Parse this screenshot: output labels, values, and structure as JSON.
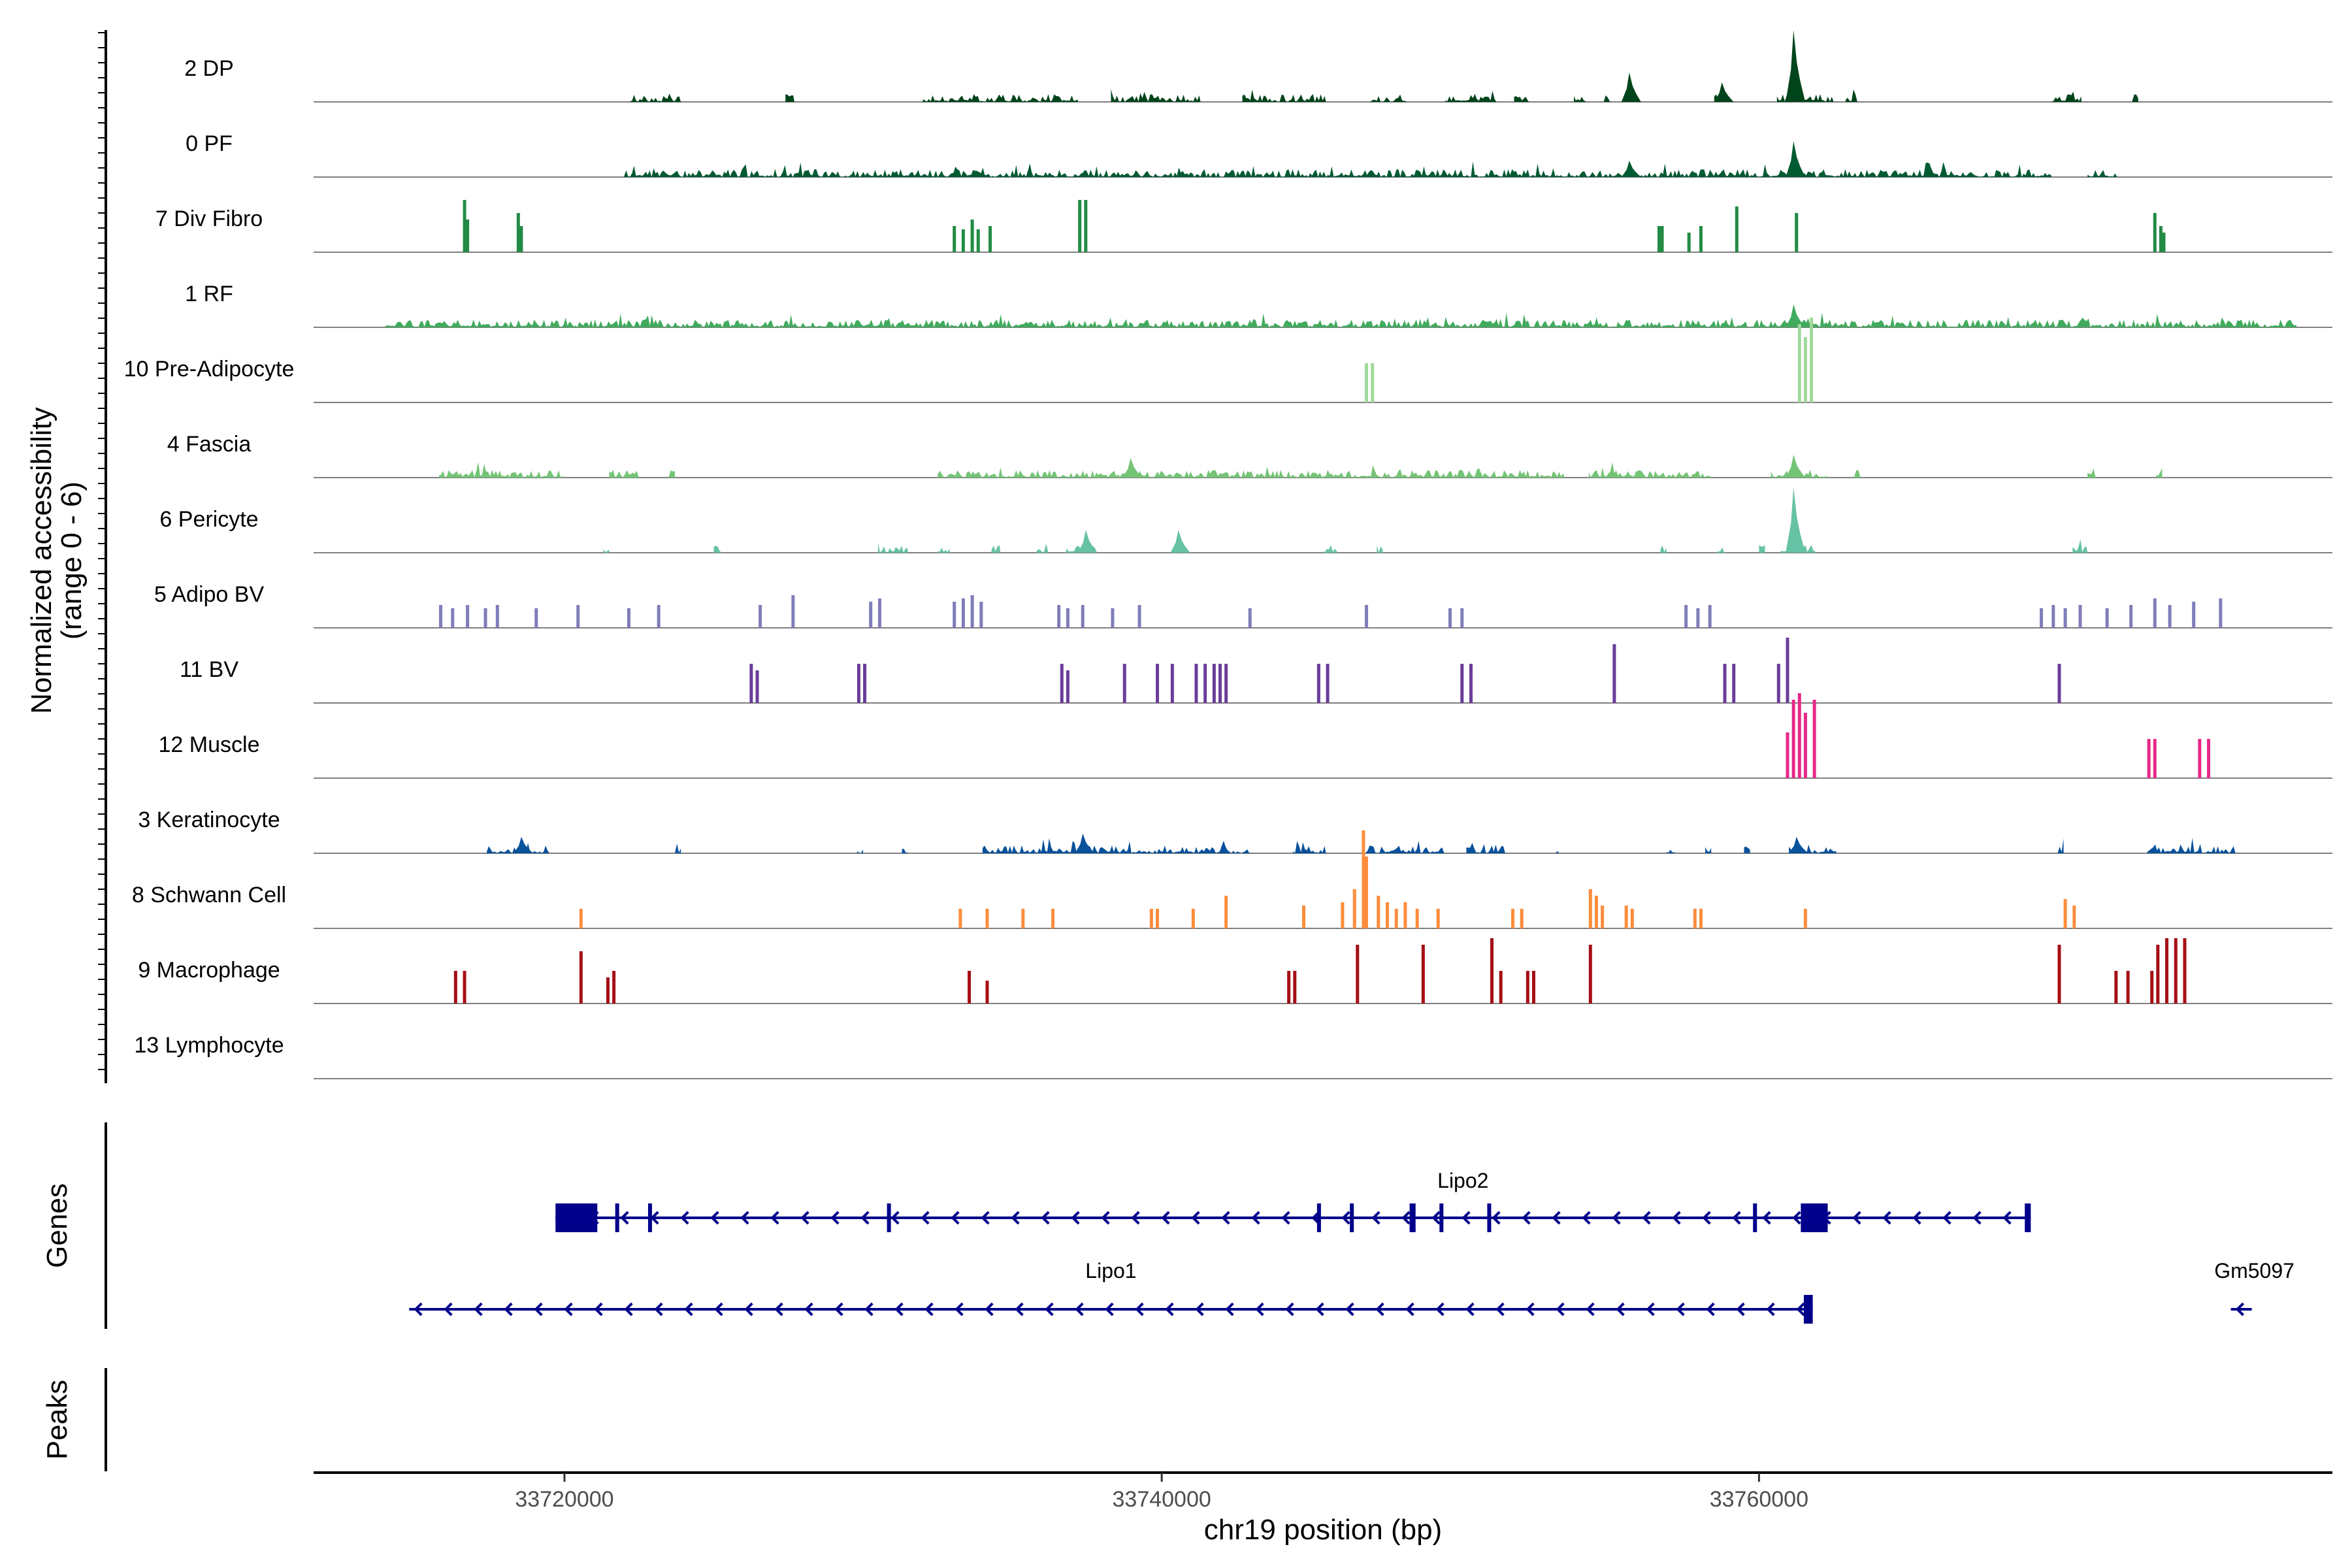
{
  "y_axis": {
    "label_line1": "Normalized accessibility",
    "label_line2": "(range 0 - 6)"
  },
  "panels": {
    "genes_label": "Genes",
    "peaks_label": "Peaks"
  },
  "x_axis": {
    "label": "chr19 position (bp)",
    "ticks": [
      "33720000",
      "33740000",
      "33760000"
    ]
  },
  "chart_data": {
    "type": "area",
    "region": {
      "chrom": "chr19",
      "start": 33711600,
      "end": 33779200
    },
    "ylim": [
      0,
      6
    ],
    "x_ticks": [
      33720000,
      33740000,
      33760000
    ],
    "tracks": [
      {
        "name": "2 DP",
        "color": "#00441b",
        "style": "dense",
        "regions": [
          [
            33722200,
            33723900
          ],
          [
            33727400,
            33727700
          ],
          [
            33732000,
            33737200
          ],
          [
            33738300,
            33741300
          ],
          [
            33742700,
            33745500
          ],
          [
            33747000,
            33748200
          ],
          [
            33749500,
            33751200
          ],
          [
            33751800,
            33752300
          ],
          [
            33753800,
            33754200
          ],
          [
            33754800,
            33755000
          ],
          [
            33758500,
            33758900
          ],
          [
            33760600,
            33762500
          ],
          [
            33762900,
            33763300
          ],
          [
            33769800,
            33770800
          ],
          [
            33772500,
            33772700
          ]
        ],
        "peaks": [
          [
            33761200,
            1.1
          ],
          [
            33755700,
            0.45
          ],
          [
            33758800,
            0.3
          ]
        ]
      },
      {
        "name": "0 PF",
        "color": "#005a32",
        "style": "dense",
        "regions": [
          [
            33722000,
            33769800
          ],
          [
            33771000,
            33772000
          ]
        ],
        "peaks": [
          [
            33761200,
            0.55
          ],
          [
            33755700,
            0.25
          ]
        ]
      },
      {
        "name": "7 Div Fibro",
        "color": "#238b45",
        "style": "bars",
        "bars": [
          [
            33716600,
            0.8
          ],
          [
            33716700,
            0.5
          ],
          [
            33718400,
            0.6
          ],
          [
            33718500,
            0.4
          ],
          [
            33733000,
            0.4
          ],
          [
            33733300,
            0.35
          ],
          [
            33733600,
            0.5
          ],
          [
            33733800,
            0.35
          ],
          [
            33734200,
            0.4
          ],
          [
            33737200,
            0.8
          ],
          [
            33737400,
            0.8
          ],
          [
            33756600,
            0.4
          ],
          [
            33756700,
            0.4
          ],
          [
            33757600,
            0.3
          ],
          [
            33758000,
            0.4
          ],
          [
            33759200,
            0.7
          ],
          [
            33761200,
            0.6
          ],
          [
            33773200,
            0.6
          ],
          [
            33773400,
            0.4
          ],
          [
            33773500,
            0.3
          ]
        ]
      },
      {
        "name": "1 RF",
        "color": "#41ab5d",
        "style": "dense",
        "regions": [
          [
            33714000,
            33778000
          ]
        ],
        "peaks": [
          [
            33761200,
            0.35
          ]
        ]
      },
      {
        "name": "10 Pre-Adipocyte",
        "color": "#a1d99b",
        "style": "bars",
        "bars": [
          [
            33746800,
            0.6
          ],
          [
            33747000,
            0.6
          ],
          [
            33761300,
            1.2
          ],
          [
            33761500,
            1.0
          ],
          [
            33761700,
            1.3
          ]
        ]
      },
      {
        "name": "4 Fascia",
        "color": "#74c476",
        "style": "dense",
        "regions": [
          [
            33715800,
            33720000
          ],
          [
            33721500,
            33722500
          ],
          [
            33723500,
            33723700
          ],
          [
            33732500,
            33753500
          ],
          [
            33754300,
            33758400
          ],
          [
            33760400,
            33762400
          ],
          [
            33763200,
            33763500
          ],
          [
            33771000,
            33771300
          ],
          [
            33773300,
            33773500
          ]
        ],
        "peaks": [
          [
            33761200,
            0.35
          ],
          [
            33739000,
            0.3
          ]
        ]
      },
      {
        "name": "6 Pericyte",
        "color": "#66c2a4",
        "style": "dense",
        "regions": [
          [
            33721300,
            33721500
          ],
          [
            33725000,
            33725300
          ],
          [
            33730500,
            33731500
          ],
          [
            33732500,
            33732900
          ],
          [
            33734300,
            33734600
          ],
          [
            33735800,
            33736200
          ],
          [
            33736800,
            33737800
          ],
          [
            33740500,
            33740800
          ],
          [
            33745400,
            33745900
          ],
          [
            33747200,
            33747400
          ],
          [
            33756700,
            33756900
          ],
          [
            33758500,
            33758900
          ],
          [
            33760000,
            33760200
          ],
          [
            33760700,
            33761900
          ],
          [
            33770500,
            33771000
          ]
        ],
        "peaks": [
          [
            33761200,
            1.0
          ],
          [
            33740600,
            0.35
          ],
          [
            33737500,
            0.35
          ]
        ]
      },
      {
        "name": "5 Adipo BV",
        "color": "#807dba",
        "style": "bars",
        "bars": [
          [
            33715800,
            0.35
          ],
          [
            33716200,
            0.3
          ],
          [
            33716700,
            0.35
          ],
          [
            33717300,
            0.3
          ],
          [
            33717700,
            0.35
          ],
          [
            33719000,
            0.3
          ],
          [
            33720400,
            0.35
          ],
          [
            33722100,
            0.3
          ],
          [
            33723100,
            0.35
          ],
          [
            33726500,
            0.35
          ],
          [
            33727600,
            0.5
          ],
          [
            33730200,
            0.4
          ],
          [
            33730500,
            0.45
          ],
          [
            33733000,
            0.4
          ],
          [
            33733300,
            0.45
          ],
          [
            33733600,
            0.5
          ],
          [
            33733900,
            0.4
          ],
          [
            33736500,
            0.35
          ],
          [
            33736800,
            0.3
          ],
          [
            33737300,
            0.35
          ],
          [
            33738300,
            0.3
          ],
          [
            33739200,
            0.35
          ],
          [
            33742900,
            0.3
          ],
          [
            33746800,
            0.35
          ],
          [
            33749600,
            0.3
          ],
          [
            33750000,
            0.3
          ],
          [
            33757500,
            0.35
          ],
          [
            33757900,
            0.3
          ],
          [
            33758300,
            0.35
          ],
          [
            33769400,
            0.3
          ],
          [
            33769800,
            0.35
          ],
          [
            33770200,
            0.3
          ],
          [
            33770700,
            0.35
          ],
          [
            33771600,
            0.3
          ],
          [
            33772400,
            0.35
          ],
          [
            33773200,
            0.45
          ],
          [
            33773700,
            0.35
          ],
          [
            33774500,
            0.4
          ],
          [
            33775400,
            0.45
          ]
        ]
      },
      {
        "name": "11 BV",
        "color": "#6a3d9a",
        "style": "bars",
        "bars": [
          [
            33726200,
            0.6
          ],
          [
            33726400,
            0.5
          ],
          [
            33729800,
            0.6
          ],
          [
            33730000,
            0.6
          ],
          [
            33736600,
            0.6
          ],
          [
            33736800,
            0.5
          ],
          [
            33738700,
            0.6
          ],
          [
            33739800,
            0.6
          ],
          [
            33740300,
            0.6
          ],
          [
            33741100,
            0.6
          ],
          [
            33741400,
            0.6
          ],
          [
            33741700,
            0.6
          ],
          [
            33741900,
            0.6
          ],
          [
            33742100,
            0.6
          ],
          [
            33745200,
            0.6
          ],
          [
            33745500,
            0.6
          ],
          [
            33750000,
            0.6
          ],
          [
            33750300,
            0.6
          ],
          [
            33755100,
            0.9
          ],
          [
            33758800,
            0.6
          ],
          [
            33759100,
            0.6
          ],
          [
            33760600,
            0.6
          ],
          [
            33760900,
            1.0
          ],
          [
            33770000,
            0.6
          ]
        ]
      },
      {
        "name": "12 Muscle",
        "color": "#e7298a",
        "style": "bars",
        "bars": [
          [
            33760900,
            0.7
          ],
          [
            33761100,
            1.2
          ],
          [
            33761300,
            1.3
          ],
          [
            33761500,
            1.0
          ],
          [
            33761800,
            1.2
          ],
          [
            33773000,
            0.6
          ],
          [
            33773200,
            0.6
          ],
          [
            33774700,
            0.6
          ],
          [
            33775000,
            0.6
          ]
        ]
      },
      {
        "name": "3 Keratinocyte",
        "color": "#08519c",
        "style": "dense",
        "regions": [
          [
            33717400,
            33719500
          ],
          [
            33723700,
            33723900
          ],
          [
            33729800,
            33730000
          ],
          [
            33731300,
            33731500
          ],
          [
            33734000,
            33743000
          ],
          [
            33744400,
            33745500
          ],
          [
            33746700,
            33749500
          ],
          [
            33750200,
            33751500
          ],
          [
            33753200,
            33753300
          ],
          [
            33756900,
            33757200
          ],
          [
            33758200,
            33758400
          ],
          [
            33759500,
            33759700
          ],
          [
            33761000,
            33762600
          ],
          [
            33770000,
            33770200
          ],
          [
            33773000,
            33776000
          ]
        ],
        "peaks": [
          [
            33737400,
            0.3
          ],
          [
            33718600,
            0.25
          ],
          [
            33761300,
            0.25
          ]
        ]
      },
      {
        "name": "8 Schwann Cell",
        "color": "#fd8d3c",
        "style": "bars",
        "bars": [
          [
            33720500,
            0.3
          ],
          [
            33733200,
            0.3
          ],
          [
            33734100,
            0.3
          ],
          [
            33735300,
            0.3
          ],
          [
            33736300,
            0.3
          ],
          [
            33739600,
            0.3
          ],
          [
            33739800,
            0.3
          ],
          [
            33741000,
            0.3
          ],
          [
            33742100,
            0.5
          ],
          [
            33744700,
            0.35
          ],
          [
            33746000,
            0.4
          ],
          [
            33746400,
            0.6
          ],
          [
            33746700,
            1.5
          ],
          [
            33746800,
            1.1
          ],
          [
            33747200,
            0.5
          ],
          [
            33747500,
            0.4
          ],
          [
            33747800,
            0.3
          ],
          [
            33748100,
            0.4
          ],
          [
            33748500,
            0.3
          ],
          [
            33749200,
            0.3
          ],
          [
            33751700,
            0.3
          ],
          [
            33752000,
            0.3
          ],
          [
            33754300,
            0.6
          ],
          [
            33754500,
            0.5
          ],
          [
            33754700,
            0.35
          ],
          [
            33755500,
            0.35
          ],
          [
            33755700,
            0.3
          ],
          [
            33757800,
            0.3
          ],
          [
            33758000,
            0.3
          ],
          [
            33761500,
            0.3
          ],
          [
            33770200,
            0.45
          ],
          [
            33770500,
            0.35
          ]
        ]
      },
      {
        "name": "9 Macrophage",
        "color": "#a50f15",
        "style": "bars",
        "bars": [
          [
            33716300,
            0.5
          ],
          [
            33716600,
            0.5
          ],
          [
            33720500,
            0.8
          ],
          [
            33721400,
            0.4
          ],
          [
            33721600,
            0.5
          ],
          [
            33733500,
            0.5
          ],
          [
            33734100,
            0.35
          ],
          [
            33744200,
            0.5
          ],
          [
            33744400,
            0.5
          ],
          [
            33746500,
            0.9
          ],
          [
            33748700,
            0.9
          ],
          [
            33751000,
            1.0
          ],
          [
            33751300,
            0.5
          ],
          [
            33752200,
            0.5
          ],
          [
            33752400,
            0.5
          ],
          [
            33754300,
            0.9
          ],
          [
            33770000,
            0.9
          ],
          [
            33771900,
            0.5
          ],
          [
            33772300,
            0.5
          ],
          [
            33773100,
            0.5
          ],
          [
            33773300,
            0.9
          ],
          [
            33773600,
            1.0
          ],
          [
            33773900,
            1.0
          ],
          [
            33774200,
            1.0
          ]
        ]
      },
      {
        "name": "13 Lymphocyte",
        "color": "#808080",
        "style": "empty"
      }
    ],
    "genes": [
      {
        "name": "Lipo2",
        "strand": "-",
        "start": 33719700,
        "end": 33769100,
        "exons": [
          [
            33719700,
            33721100
          ],
          [
            33721700,
            33721800
          ],
          [
            33722800,
            33722900
          ],
          [
            33730800,
            33730900
          ],
          [
            33745200,
            33745300
          ],
          [
            33746300,
            33746400
          ],
          [
            33748300,
            33748500
          ],
          [
            33749300,
            33749400
          ],
          [
            33750900,
            33751000
          ],
          [
            33759800,
            33759900
          ],
          [
            33761400,
            33762300
          ],
          [
            33768900,
            33769100
          ]
        ]
      },
      {
        "name": "Lipo1",
        "strand": "-",
        "start": 33714800,
        "end": 33761800,
        "exons": [
          [
            33761500,
            33761800
          ]
        ]
      },
      {
        "name": "Gm5097",
        "strand": "-",
        "start": 33775800,
        "end": 33776500,
        "exons": []
      }
    ]
  }
}
